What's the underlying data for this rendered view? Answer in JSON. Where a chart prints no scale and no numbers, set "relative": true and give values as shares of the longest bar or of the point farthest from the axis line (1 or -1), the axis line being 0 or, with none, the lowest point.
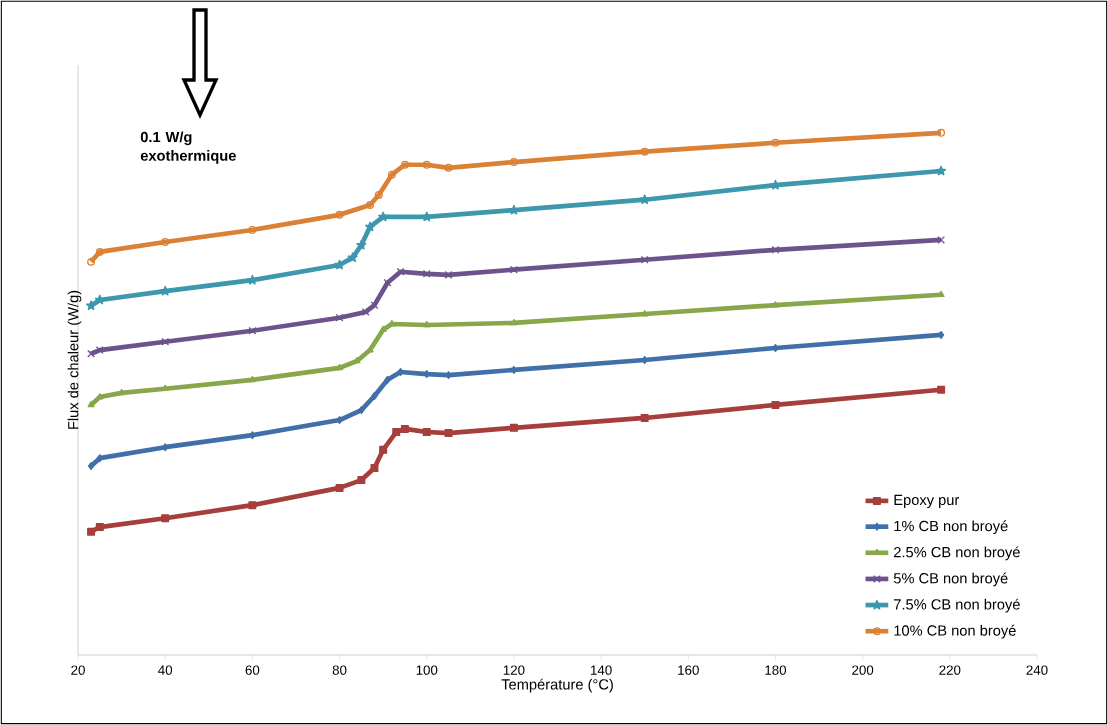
{
  "chart_data": {
    "type": "line",
    "relative": true,
    "xlabel": "Température (°C)",
    "ylabel": "Flux de chaleur (W/g)",
    "xlim": [
      20,
      240
    ],
    "xticks": [
      20,
      40,
      60,
      80,
      100,
      120,
      140,
      160,
      180,
      200,
      220,
      240
    ],
    "legend": "bottom right",
    "grid": false,
    "annotations": [
      "0.1 W/g exothermique"
    ],
    "series": [
      {
        "name": "Epoxy pur",
        "color": "#a63f3c",
        "marker": "square",
        "x": [
          23,
          25,
          40,
          60,
          80,
          85,
          88,
          90,
          93,
          95,
          100,
          105,
          120,
          150,
          180,
          218
        ],
        "values": [
          0.236,
          0.245,
          0.262,
          0.287,
          0.32,
          0.335,
          0.358,
          0.393,
          0.427,
          0.433,
          0.427,
          0.425,
          0.435,
          0.454,
          0.479,
          0.508
        ]
      },
      {
        "name": "1% CB non broyé",
        "color": "#4170a8",
        "marker": "diamond",
        "x": [
          23,
          25,
          40,
          60,
          80,
          85,
          88,
          91,
          94,
          100,
          105,
          120,
          150,
          180,
          218
        ],
        "values": [
          0.362,
          0.377,
          0.398,
          0.421,
          0.45,
          0.469,
          0.496,
          0.527,
          0.542,
          0.538,
          0.536,
          0.546,
          0.565,
          0.588,
          0.613
        ]
      },
      {
        "name": "2.5% CB non broyé",
        "color": "#87a74a",
        "marker": "triangle",
        "x": [
          23,
          25,
          30,
          40,
          60,
          80,
          84,
          87,
          90,
          92,
          100,
          120,
          150,
          180,
          218
        ],
        "values": [
          0.479,
          0.494,
          0.502,
          0.51,
          0.527,
          0.55,
          0.563,
          0.584,
          0.623,
          0.634,
          0.632,
          0.636,
          0.653,
          0.67,
          0.69
        ]
      },
      {
        "name": "5% CB non broyé",
        "color": "#6c538c",
        "marker": "cross",
        "x": [
          23,
          25,
          40,
          60,
          80,
          86,
          88,
          91,
          94,
          100,
          105,
          120,
          150,
          180,
          218
        ],
        "values": [
          0.577,
          0.584,
          0.6,
          0.621,
          0.646,
          0.657,
          0.67,
          0.713,
          0.734,
          0.73,
          0.728,
          0.738,
          0.757,
          0.776,
          0.795
        ]
      },
      {
        "name": "7.5% CB non broyé",
        "color": "#3d97ad",
        "marker": "star",
        "x": [
          23,
          25,
          40,
          60,
          80,
          83,
          85,
          87,
          90,
          100,
          120,
          150,
          180,
          218
        ],
        "values": [
          0.669,
          0.68,
          0.697,
          0.718,
          0.747,
          0.761,
          0.785,
          0.82,
          0.839,
          0.839,
          0.852,
          0.872,
          0.9,
          0.927
        ]
      },
      {
        "name": "10% CB non broyé",
        "color": "#db8136",
        "marker": "circle",
        "x": [
          23,
          25,
          40,
          60,
          80,
          87,
          89,
          92,
          95,
          100,
          105,
          120,
          150,
          180,
          218
        ],
        "values": [
          0.753,
          0.772,
          0.791,
          0.814,
          0.843,
          0.862,
          0.881,
          0.92,
          0.939,
          0.939,
          0.933,
          0.944,
          0.964,
          0.981,
          1
        ]
      }
    ]
  }
}
